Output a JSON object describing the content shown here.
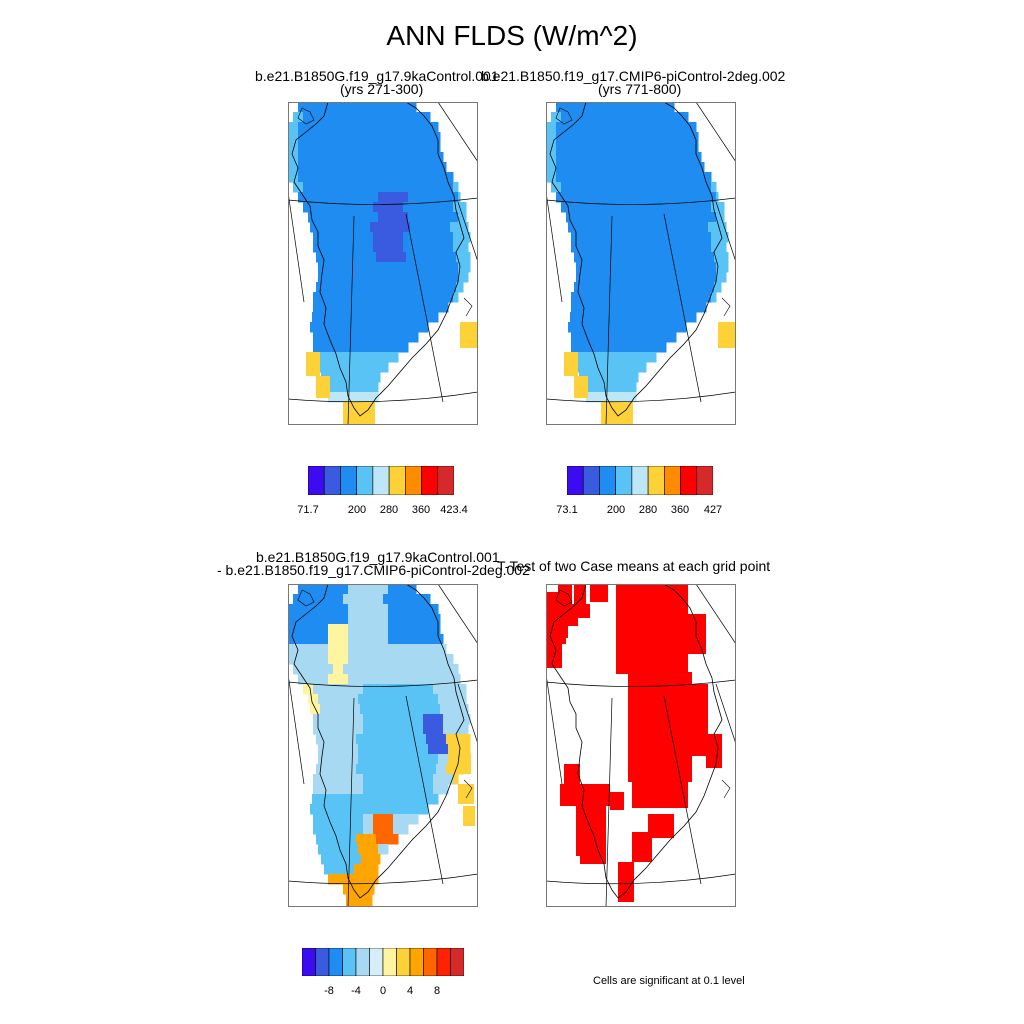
{
  "figure": {
    "title": "ANN FLDS (W/m^2)",
    "note": "Cells are significant at 0.1 level"
  },
  "palettes": {
    "absolute": [
      "#3b0cf0",
      "#3a5be0",
      "#1e8cf0",
      "#5ac3f5",
      "#bde6f7",
      "#fdd138",
      "#ff8b00",
      "#ff0000",
      "#d62a2a"
    ],
    "difference": [
      "#3b0cf0",
      "#3a5be0",
      "#1e8cf0",
      "#5ac3f5",
      "#a8d9f2",
      "#d6eef9",
      "#fff5a0",
      "#fdd138",
      "#ffa500",
      "#ff6600",
      "#ff2200",
      "#d62a2a"
    ],
    "significance": "#ff0000"
  },
  "chart_data": [
    {
      "type": "heatmap",
      "title": "b.e21.B1850G.f19_g17.9kaControl.001",
      "subtitle": "(yrs 271-300)",
      "colorbar_labels": [
        "71.7",
        "200",
        "280",
        "360",
        "423.4"
      ],
      "region": "Greenland",
      "dominant_range": [
        200,
        280
      ]
    },
    {
      "type": "heatmap",
      "title": "b.e21.B1850.f19_g17.CMIP6-piControl-2deg.002",
      "subtitle": "(yrs 771-800)",
      "colorbar_labels": [
        "73.1",
        "200",
        "280",
        "360",
        "427"
      ],
      "region": "Greenland",
      "dominant_range": [
        200,
        280
      ]
    },
    {
      "type": "heatmap",
      "title": "b.e21.B1850G.f19_g17.9kaControl.001",
      "subtitle": "- b.e21.B1850.f19_g17.CMIP6-piControl-2deg.002",
      "colorbar_labels": [
        "-8",
        "-4",
        "0",
        "4",
        "8"
      ],
      "region": "Greenland",
      "dominant_range": [
        -4,
        0
      ]
    },
    {
      "type": "heatmap",
      "title": "T-Test of two Case means at each grid point",
      "region": "Greenland",
      "legend": "Cells are significant at 0.1 level"
    }
  ]
}
